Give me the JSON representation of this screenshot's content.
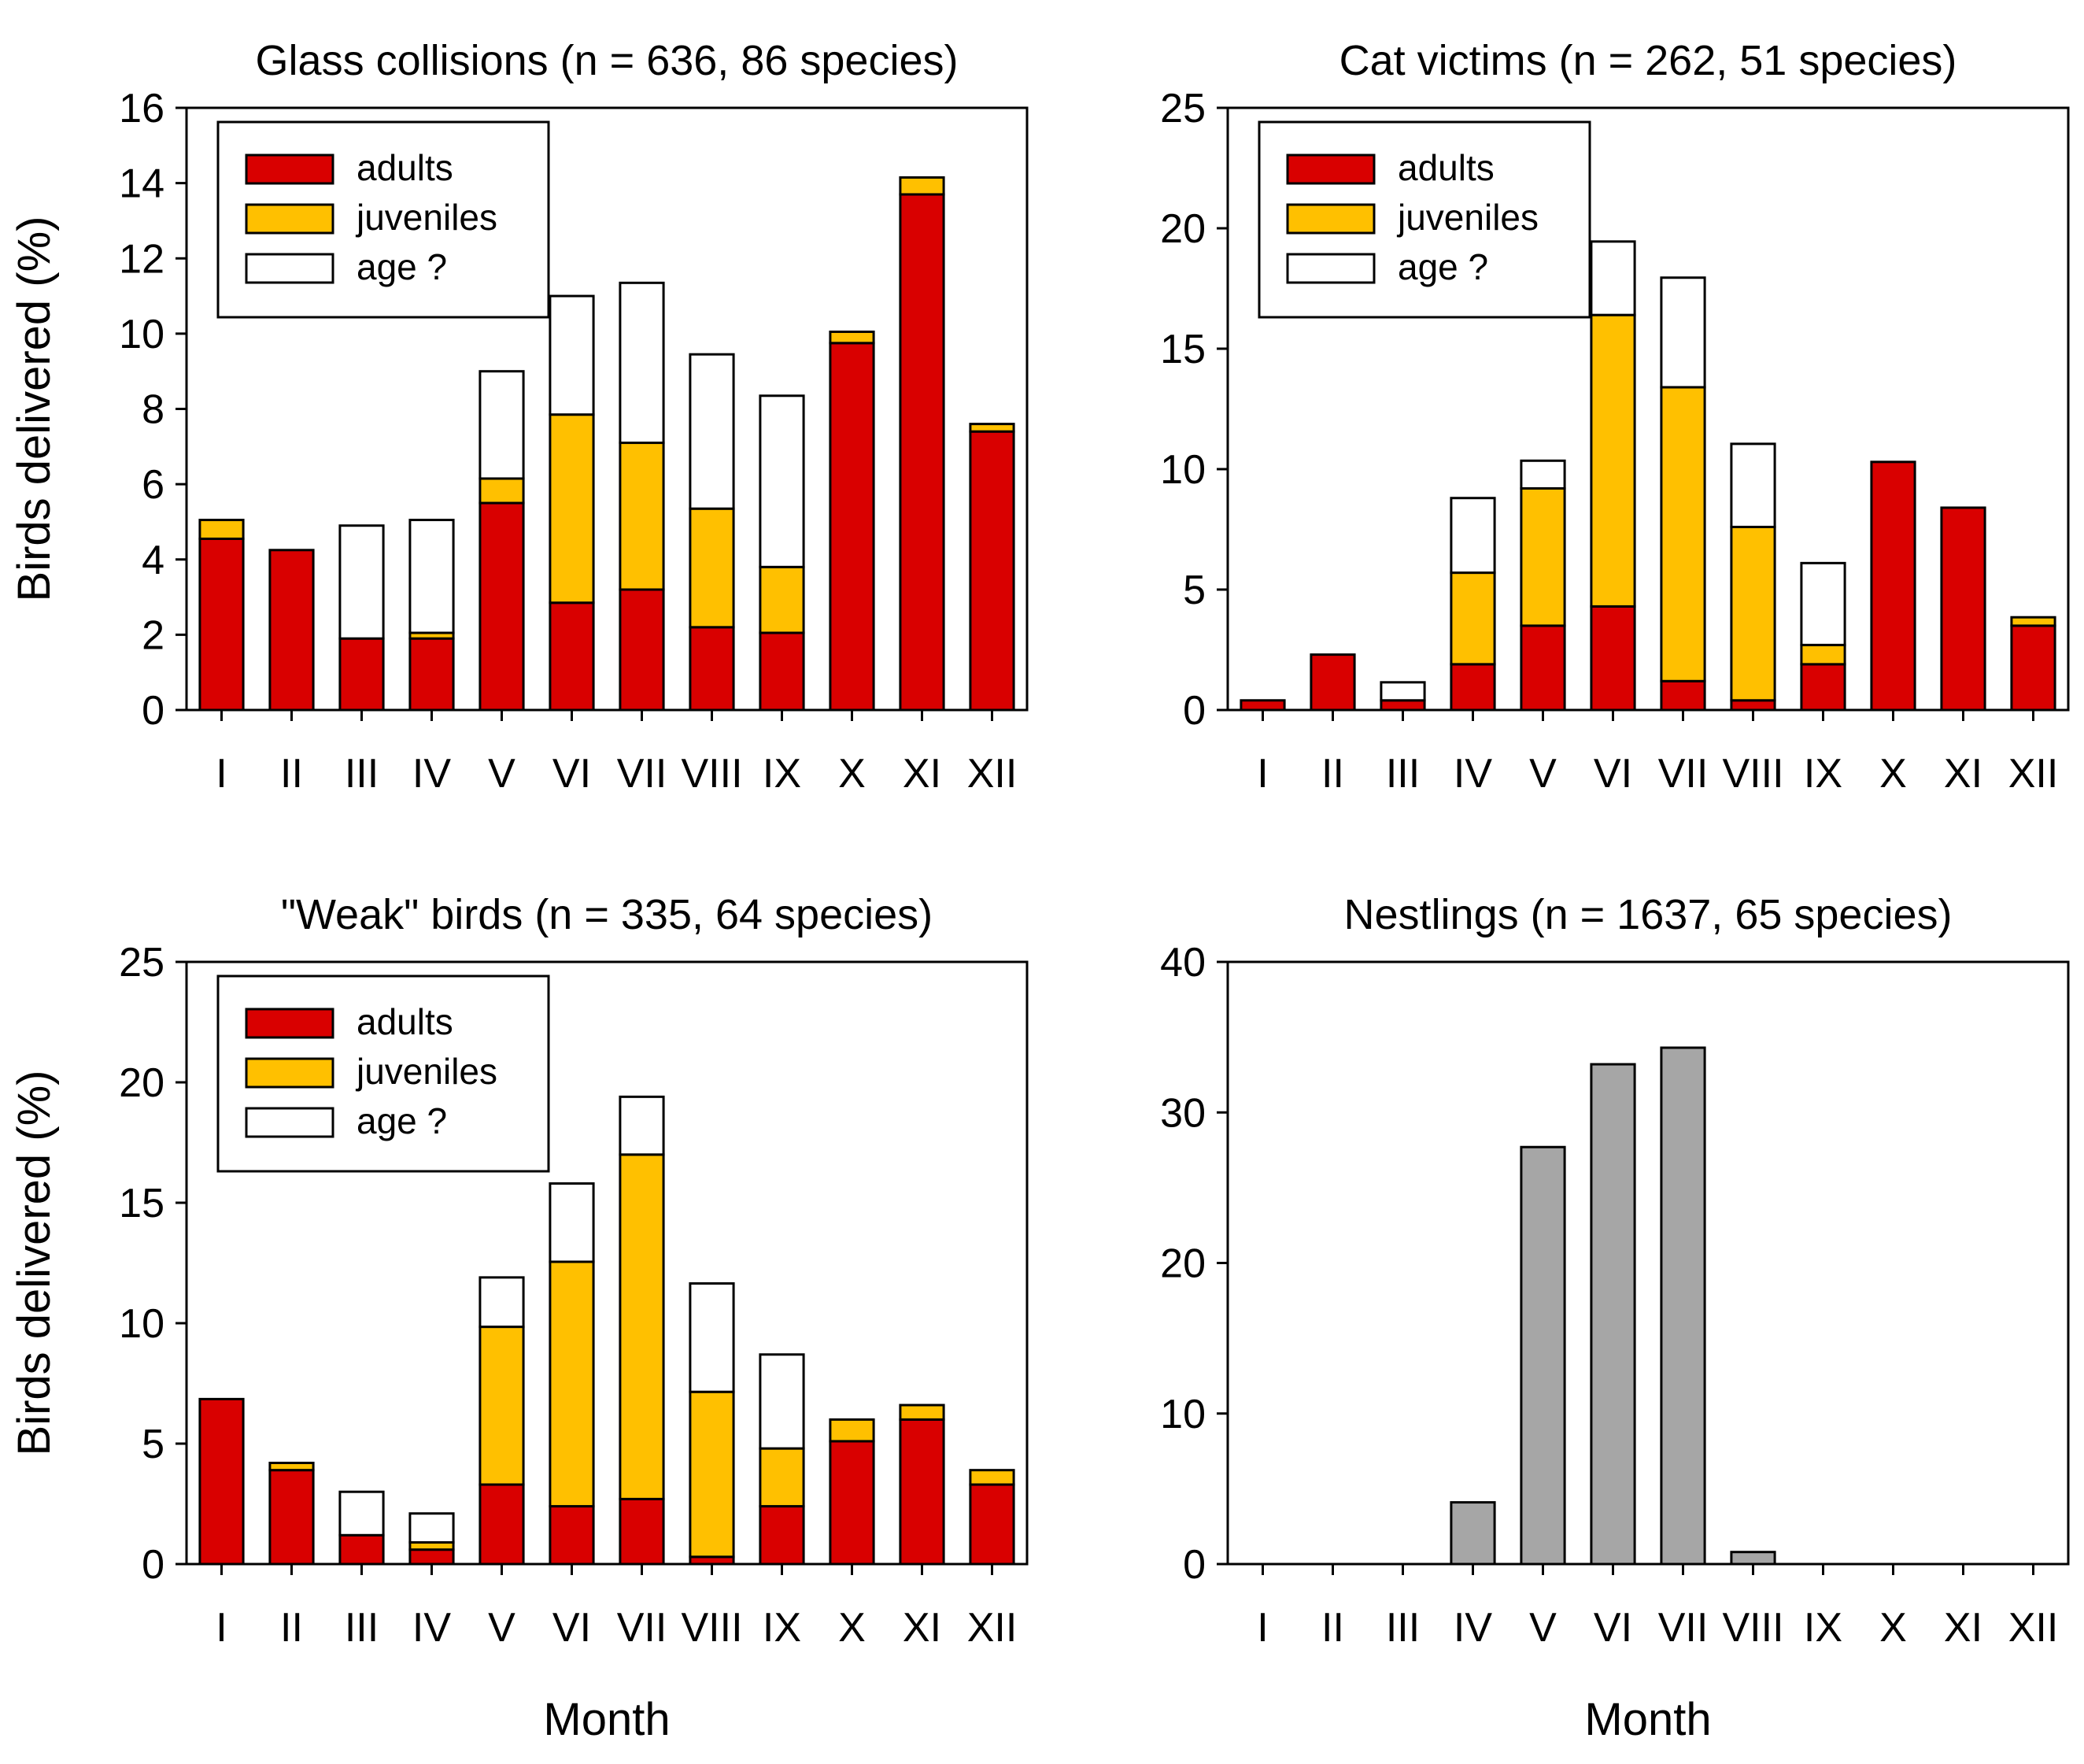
{
  "colors": {
    "adults": "#d90000",
    "juveniles": "#ffc000",
    "age_unknown": "#ffffff",
    "nestlings": "#a6a6a6",
    "stroke": "#000000"
  },
  "legend": {
    "adults": "adults",
    "juveniles": "juveniles",
    "age_unknown": "age ?"
  },
  "chart_data": [
    {
      "type": "bar",
      "stacked": true,
      "title": "Glass collisions (n = 636, 86 species)",
      "xlabel": "",
      "ylabel": "Birds delivered (%)",
      "ylim": [
        0,
        16
      ],
      "yticks": [
        0,
        2,
        4,
        6,
        8,
        10,
        12,
        14,
        16
      ],
      "legend_position": "top-left",
      "categories": [
        "I",
        "II",
        "III",
        "IV",
        "V",
        "VI",
        "VII",
        "VIII",
        "IX",
        "X",
        "XI",
        "XII"
      ],
      "series": [
        {
          "name": "adults",
          "values": [
            4.55,
            4.25,
            1.9,
            1.9,
            5.5,
            2.85,
            3.2,
            2.2,
            2.05,
            9.75,
            13.7,
            7.4
          ]
        },
        {
          "name": "juveniles",
          "values": [
            0.5,
            0,
            0,
            0.15,
            0.65,
            5.0,
            3.9,
            3.15,
            1.75,
            0.3,
            0.45,
            0.2
          ]
        },
        {
          "name": "age ?",
          "values": [
            0,
            0,
            3.0,
            3.0,
            2.85,
            3.15,
            4.25,
            4.1,
            4.55,
            0,
            0,
            0
          ]
        }
      ]
    },
    {
      "type": "bar",
      "stacked": true,
      "title": "Cat victims (n = 262, 51 species)",
      "xlabel": "",
      "ylabel": "",
      "ylim": [
        0,
        25
      ],
      "yticks": [
        0,
        5,
        10,
        15,
        20,
        25
      ],
      "legend_position": "top-left",
      "categories": [
        "I",
        "II",
        "III",
        "IV",
        "V",
        "VI",
        "VII",
        "VIII",
        "IX",
        "X",
        "XI",
        "XII"
      ],
      "series": [
        {
          "name": "adults",
          "values": [
            0.4,
            2.3,
            0.4,
            1.9,
            3.5,
            4.3,
            1.2,
            0.4,
            1.9,
            10.3,
            8.4,
            3.5
          ]
        },
        {
          "name": "juveniles",
          "values": [
            0,
            0,
            0,
            3.8,
            5.7,
            12.1,
            12.2,
            7.2,
            0.8,
            0,
            0,
            0.35
          ]
        },
        {
          "name": "age ?",
          "values": [
            0,
            0,
            0.75,
            3.1,
            1.15,
            3.05,
            4.55,
            3.45,
            3.4,
            0,
            0,
            0
          ]
        }
      ]
    },
    {
      "type": "bar",
      "stacked": true,
      "title": "\"Weak\" birds (n = 335, 64 species)",
      "xlabel": "Month",
      "ylabel": "Birds delivered (%)",
      "ylim": [
        0,
        25
      ],
      "yticks": [
        0,
        5,
        10,
        15,
        20,
        25
      ],
      "legend_position": "top-left",
      "categories": [
        "I",
        "II",
        "III",
        "IV",
        "V",
        "VI",
        "VII",
        "VIII",
        "IX",
        "X",
        "XI",
        "XII"
      ],
      "series": [
        {
          "name": "adults",
          "values": [
            6.85,
            3.9,
            1.2,
            0.6,
            3.3,
            2.4,
            2.7,
            0.3,
            2.4,
            5.1,
            6.0,
            3.3
          ]
        },
        {
          "name": "juveniles",
          "values": [
            0,
            0.3,
            0,
            0.3,
            6.55,
            10.15,
            14.3,
            6.85,
            2.4,
            0.9,
            0.6,
            0.6
          ]
        },
        {
          "name": "age ?",
          "values": [
            0,
            0,
            1.8,
            1.2,
            2.05,
            3.25,
            2.4,
            4.5,
            3.9,
            0,
            0,
            0
          ]
        }
      ]
    },
    {
      "type": "bar",
      "stacked": false,
      "title": "Nestlings (n = 1637, 65 species)",
      "xlabel": "Month",
      "ylabel": "",
      "ylim": [
        0,
        40
      ],
      "yticks": [
        0,
        10,
        20,
        30,
        40
      ],
      "categories": [
        "I",
        "II",
        "III",
        "IV",
        "V",
        "VI",
        "VII",
        "VIII",
        "IX",
        "X",
        "XI",
        "XII"
      ],
      "series": [
        {
          "name": "nestlings",
          "values": [
            0,
            0,
            0,
            4.1,
            27.7,
            33.2,
            34.3,
            0.8,
            0,
            0,
            0,
            0
          ]
        }
      ]
    }
  ]
}
